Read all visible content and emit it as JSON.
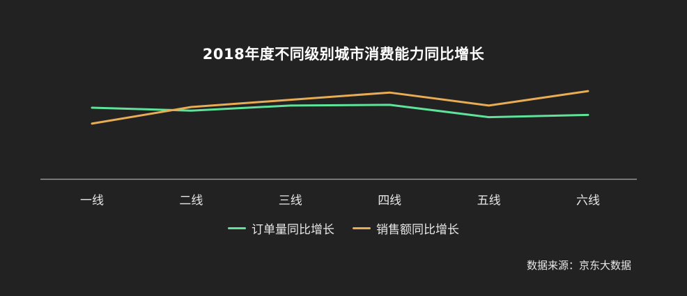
{
  "chart_data": {
    "type": "line",
    "title": "2018年度不同级别城市消费能力同比增长",
    "categories": [
      "一线",
      "二线",
      "三线",
      "四线",
      "五线",
      "六线"
    ],
    "series": [
      {
        "name": "订单量同比增长",
        "color": "#5FE39A",
        "values": [
          0.99,
          0.95,
          1.02,
          1.03,
          0.86,
          0.89
        ]
      },
      {
        "name": "销售额同比增长",
        "color": "#E7AC55",
        "values": [
          0.77,
          1.0,
          1.1,
          1.2,
          1.02,
          1.22
        ]
      }
    ],
    "xlabel": "",
    "ylabel": "",
    "ylim": [
      0,
      1.5
    ],
    "grid": false,
    "y_axis_visible": false,
    "legend_position": "bottom"
  },
  "source": "数据来源：京东大数据"
}
